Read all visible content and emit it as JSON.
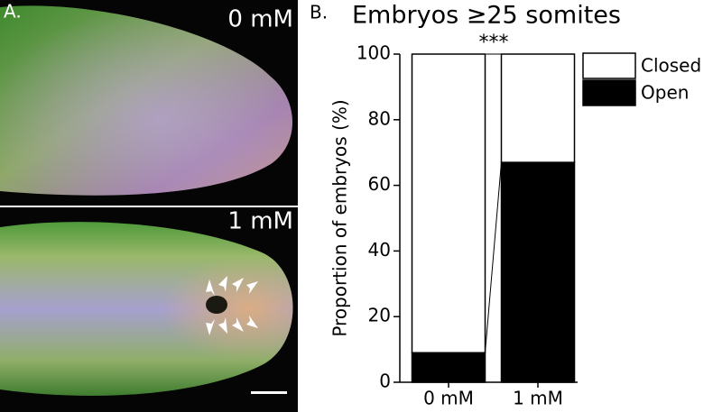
{
  "image_panel": {
    "label": "A.",
    "images": [
      {
        "label": "0 mM"
      },
      {
        "label": "1 mM"
      }
    ]
  },
  "chart_data": {
    "type": "stacked_bar",
    "panel_label": "B.",
    "title": "Embryos ≥25 somites",
    "annotation": "***",
    "y_label": "Proportion of embryos (%)",
    "categories": [
      "0 mM",
      "1 mM"
    ],
    "series": [
      {
        "name": "Open",
        "color": "#000000",
        "values": [
          9,
          67
        ]
      },
      {
        "name": "Closed",
        "color": "#ffffff",
        "values": [
          91,
          33
        ]
      }
    ],
    "ylim": [
      0,
      100
    ],
    "yticks": [
      0,
      20,
      40,
      60,
      80,
      100
    ]
  }
}
